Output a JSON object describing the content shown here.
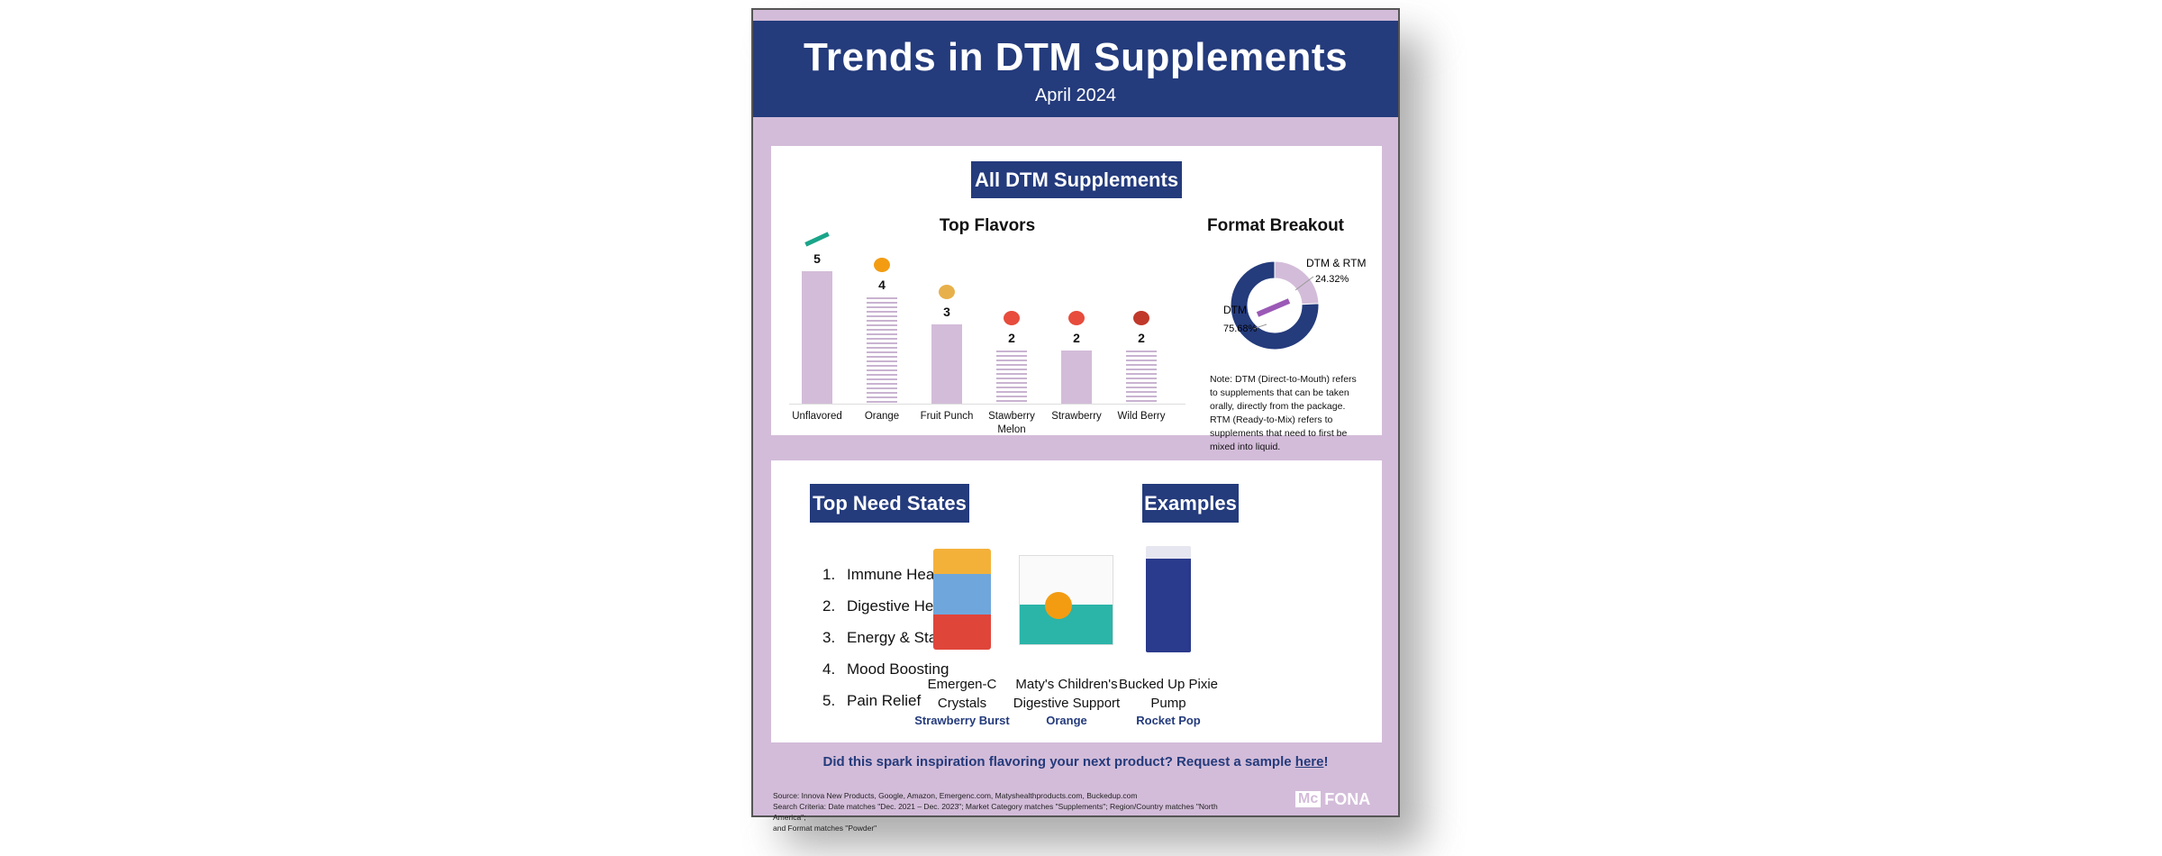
{
  "header": {
    "title": "Trends in DTM Supplements",
    "subtitle": "April 2024"
  },
  "section1": {
    "label": "All DTM Supplements",
    "chart_data": [
      {
        "type": "bar",
        "title": "Top Flavors",
        "categories": [
          "Unflavored",
          "Orange",
          "Fruit Punch",
          "Stawberry Melon",
          "Strawberry",
          "Wild Berry"
        ],
        "values": [
          5,
          4,
          3,
          2,
          2,
          2
        ],
        "color": "#d3bcd9"
      },
      {
        "type": "pie",
        "title": "Format Breakout",
        "categories": [
          "DTM",
          "DTM & RTM"
        ],
        "values": [
          75.68,
          24.32
        ],
        "labels": [
          "75.68%",
          "24.32%"
        ],
        "colors": [
          "#243b7c",
          "#d3bcd9"
        ]
      }
    ],
    "note": "Note: DTM (Direct-to-Mouth) refers to supplements that can be taken orally, directly from the package. RTM (Ready-to-Mix) refers to supplements that need to first be mixed into liquid."
  },
  "section2": {
    "need_states_label": "Top Need States",
    "need_states": [
      "Immune Health",
      "Digestive Health",
      "Energy & Stamina",
      "Mood Boosting",
      "Pain Relief"
    ],
    "examples_label": "Examples",
    "examples": [
      {
        "name": "Emergen-C Crystals",
        "flavor": "Strawberry Burst"
      },
      {
        "name": "Maty's Children's Digestive Support",
        "flavor": "Orange"
      },
      {
        "name": "Bucked Up Pixie Pump",
        "flavor": "Rocket Pop"
      }
    ]
  },
  "cta": {
    "text": "Did this spark inspiration flavoring your next product? Request a sample ",
    "link": "here",
    "end": "!"
  },
  "footer": {
    "source": "Source: Innova New Products, Google, Amazon, Emergenc.com, Matyshealthproducts.com, Buckedup.com",
    "criteria": "Search Criteria: Date matches \"Dec. 2021 – Dec. 2023\"; Market Category matches \"Supplements\"; Region/Country matches \"North America\";",
    "criteria2": "and Format matches \"Powder\"",
    "logo": "McCormick FONA"
  }
}
